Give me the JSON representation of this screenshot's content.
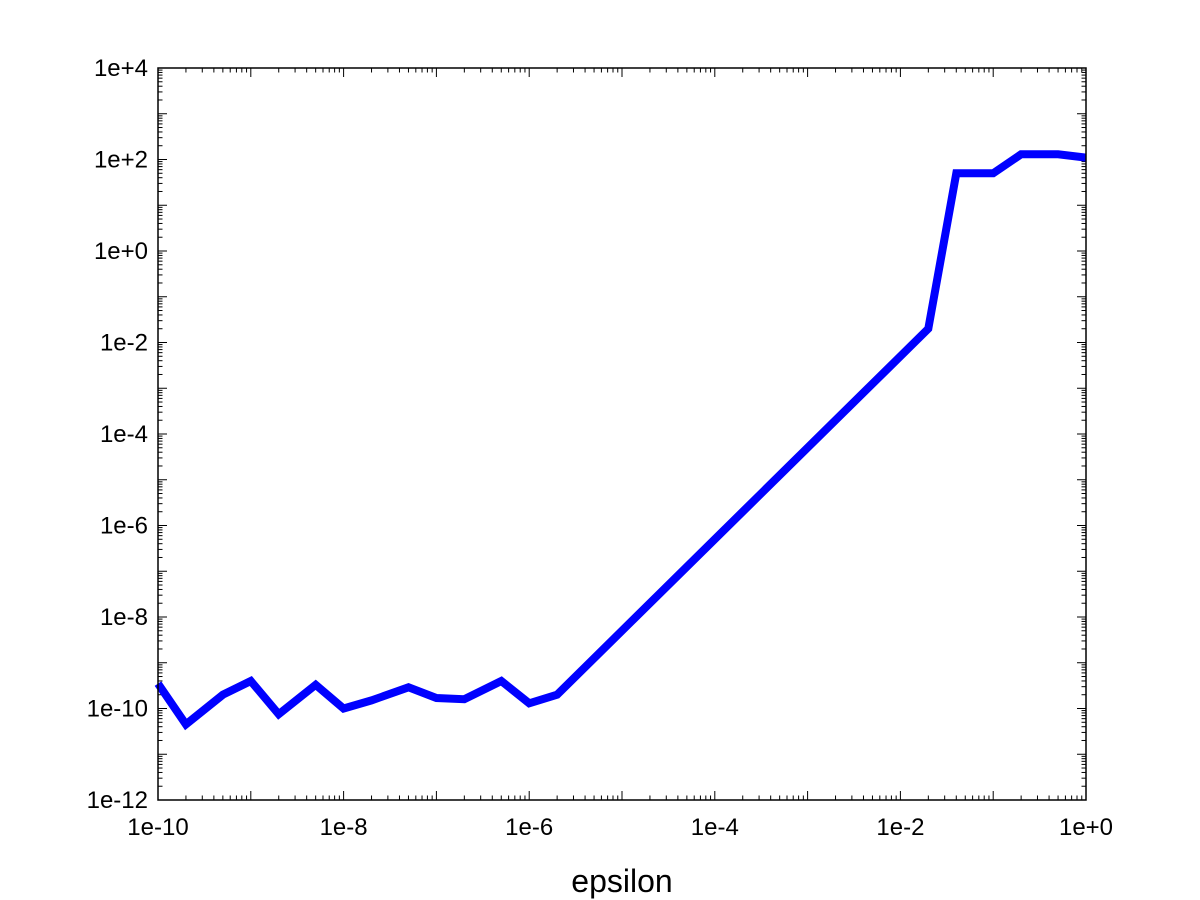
{
  "chart_data": {
    "type": "line",
    "title": "",
    "xlabel": "epsilon",
    "ylabel": "",
    "xscale": "log",
    "yscale": "log",
    "xlim": [
      1e-10,
      1
    ],
    "ylim": [
      1e-12,
      10000
    ],
    "grid": false,
    "legend": "none",
    "line_color": "#0000ff",
    "x_ticks": [
      {
        "value": 1e-10,
        "label": "1e-10"
      },
      {
        "value": 1e-08,
        "label": "1e-8"
      },
      {
        "value": 1e-06,
        "label": "1e-6"
      },
      {
        "value": 0.0001,
        "label": "1e-4"
      },
      {
        "value": 0.01,
        "label": "1e-2"
      },
      {
        "value": 1,
        "label": "1e+0"
      }
    ],
    "y_ticks": [
      {
        "value": 1e-12,
        "label": "1e-12"
      },
      {
        "value": 1e-10,
        "label": "1e-10"
      },
      {
        "value": 1e-08,
        "label": "1e-8"
      },
      {
        "value": 1e-06,
        "label": "1e-6"
      },
      {
        "value": 0.0001,
        "label": "1e-4"
      },
      {
        "value": 0.01,
        "label": "1e-2"
      },
      {
        "value": 1,
        "label": "1e+0"
      },
      {
        "value": 100,
        "label": "1e+2"
      },
      {
        "value": 10000,
        "label": "1e+4"
      }
    ],
    "series": [
      {
        "x": [
          1e-10,
          2e-10,
          5e-10,
          1e-09,
          2e-09,
          5e-09,
          1e-08,
          2e-08,
          5e-08,
          1e-07,
          2e-07,
          5e-07,
          1e-06,
          2e-06,
          0.02,
          0.04,
          0.1,
          0.2,
          0.5,
          1
        ],
        "y": [
          3.5e-10,
          4.5e-11,
          2e-10,
          4e-10,
          7.5e-11,
          3.3e-10,
          1e-10,
          1.5e-10,
          2.9e-10,
          1.7e-10,
          1.6e-10,
          4e-10,
          1.3e-10,
          2e-10,
          0.02,
          50,
          50,
          130,
          130,
          110
        ]
      }
    ]
  }
}
